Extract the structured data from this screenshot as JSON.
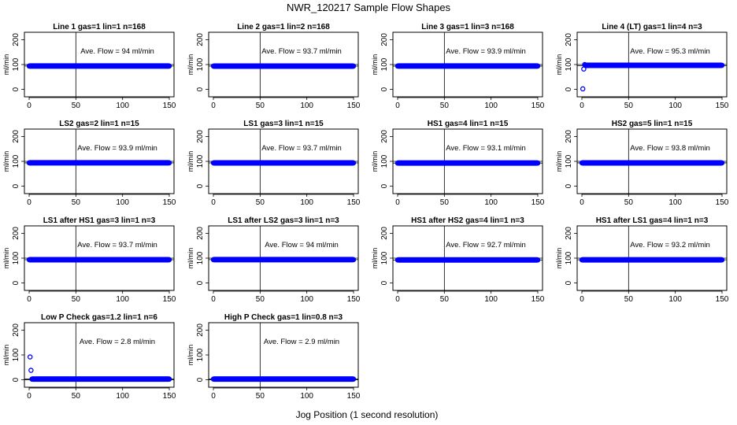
{
  "figure": {
    "title": "NWR_120217  Sample Flow Shapes",
    "xlabel": "Jog Position (1 second resolution)"
  },
  "chart_data": [
    {
      "type": "scatter",
      "title": "Line 1 gas=1 lin=1 n=168",
      "ylabel": "ml/min",
      "annotation": "Ave. Flow = 94  ml/min",
      "xlim": [
        0,
        150
      ],
      "ylim": [
        -30,
        230
      ],
      "xticks": [
        0,
        50,
        100,
        150
      ],
      "yticks": [
        0,
        100,
        200
      ],
      "x": [
        0,
        150
      ],
      "y": [
        94,
        94
      ],
      "refline_y": [
        100,
        94
      ],
      "vline_x": 50
    },
    {
      "type": "scatter",
      "title": "Line 2 gas=1 lin=2 n=168",
      "ylabel": "ml/min",
      "annotation": "Ave. Flow = 93.7  ml/min",
      "xlim": [
        0,
        150
      ],
      "ylim": [
        -30,
        230
      ],
      "xticks": [
        0,
        50,
        100,
        150
      ],
      "yticks": [
        0,
        100,
        200
      ],
      "x": [
        0,
        150
      ],
      "y": [
        93.7,
        93.7
      ],
      "refline_y": [
        100,
        93.7
      ],
      "vline_x": 50
    },
    {
      "type": "scatter",
      "title": "Line 3 gas=1 lin=3 n=168",
      "ylabel": "ml/min",
      "annotation": "Ave. Flow = 93.9  ml/min",
      "xlim": [
        0,
        150
      ],
      "ylim": [
        -30,
        230
      ],
      "xticks": [
        0,
        50,
        100,
        150
      ],
      "yticks": [
        0,
        100,
        200
      ],
      "x": [
        0,
        150
      ],
      "y": [
        93.9,
        93.9
      ],
      "refline_y": [
        100,
        93.9
      ],
      "vline_x": 50
    },
    {
      "type": "scatter",
      "title": "Line 4 (LT) gas=1 lin=4 n=3",
      "ylabel": "ml/min",
      "annotation": "Ave. Flow = 95.3  ml/min",
      "xlim": [
        0,
        150
      ],
      "ylim": [
        -30,
        230
      ],
      "xticks": [
        0,
        50,
        100,
        150
      ],
      "yticks": [
        0,
        100,
        200
      ],
      "x": [
        1,
        2,
        3,
        150
      ],
      "y": [
        2,
        82,
        100,
        97
      ],
      "refline_y": [
        100,
        95.3
      ],
      "vline_x": 50
    },
    {
      "type": "scatter",
      "title": "LS2 gas=2 lin=1 n=15",
      "ylabel": "ml/min",
      "annotation": "Ave. Flow = 93.9  ml/min",
      "xlim": [
        0,
        150
      ],
      "ylim": [
        -30,
        230
      ],
      "xticks": [
        0,
        50,
        100,
        150
      ],
      "yticks": [
        0,
        100,
        200
      ],
      "x": [
        0,
        150
      ],
      "y": [
        93.9,
        93.9
      ],
      "refline_y": [
        100,
        93.9
      ],
      "vline_x": 50
    },
    {
      "type": "scatter",
      "title": "LS1 gas=3 lin=1 n=15",
      "ylabel": "ml/min",
      "annotation": "Ave. Flow = 93.7  ml/min",
      "xlim": [
        0,
        150
      ],
      "ylim": [
        -30,
        230
      ],
      "xticks": [
        0,
        50,
        100,
        150
      ],
      "yticks": [
        0,
        100,
        200
      ],
      "x": [
        0,
        150
      ],
      "y": [
        93.7,
        93.7
      ],
      "refline_y": [
        100,
        93.7
      ],
      "vline_x": 50
    },
    {
      "type": "scatter",
      "title": "HS1 gas=4 lin=1 n=15",
      "ylabel": "ml/min",
      "annotation": "Ave. Flow = 93.1  ml/min",
      "xlim": [
        0,
        150
      ],
      "ylim": [
        -30,
        230
      ],
      "xticks": [
        0,
        50,
        100,
        150
      ],
      "yticks": [
        0,
        100,
        200
      ],
      "x": [
        0,
        150
      ],
      "y": [
        93.1,
        93.1
      ],
      "refline_y": [
        100,
        93.1
      ],
      "vline_x": 50
    },
    {
      "type": "scatter",
      "title": "HS2 gas=5 lin=1 n=15",
      "ylabel": "ml/min",
      "annotation": "Ave. Flow = 93.8  ml/min",
      "xlim": [
        0,
        150
      ],
      "ylim": [
        -30,
        230
      ],
      "xticks": [
        0,
        50,
        100,
        150
      ],
      "yticks": [
        0,
        100,
        200
      ],
      "x": [
        0,
        150
      ],
      "y": [
        93.8,
        93.8
      ],
      "refline_y": [
        100,
        93.8
      ],
      "vline_x": 50
    },
    {
      "type": "scatter",
      "title": "LS1 after HS1 gas=3 lin=1 n=3",
      "ylabel": "ml/min",
      "annotation": "Ave. Flow = 93.7  ml/min",
      "xlim": [
        0,
        150
      ],
      "ylim": [
        -30,
        230
      ],
      "xticks": [
        0,
        50,
        100,
        150
      ],
      "yticks": [
        0,
        100,
        200
      ],
      "x": [
        0,
        150
      ],
      "y": [
        93.7,
        93.7
      ],
      "refline_y": [
        100,
        93.7
      ],
      "vline_x": 50
    },
    {
      "type": "scatter",
      "title": "LS1 after LS2 gas=3 lin=1 n=3",
      "ylabel": "ml/min",
      "annotation": "Ave. Flow = 94  ml/min",
      "xlim": [
        0,
        150
      ],
      "ylim": [
        -30,
        230
      ],
      "xticks": [
        0,
        50,
        100,
        150
      ],
      "yticks": [
        0,
        100,
        200
      ],
      "x": [
        0,
        150
      ],
      "y": [
        94,
        94
      ],
      "refline_y": [
        100,
        94
      ],
      "vline_x": 50
    },
    {
      "type": "scatter",
      "title": "HS1 after HS2 gas=4 lin=1 n=3",
      "ylabel": "ml/min",
      "annotation": "Ave. Flow = 92.7  ml/min",
      "xlim": [
        0,
        150
      ],
      "ylim": [
        -30,
        230
      ],
      "xticks": [
        0,
        50,
        100,
        150
      ],
      "yticks": [
        0,
        100,
        200
      ],
      "x": [
        0,
        150
      ],
      "y": [
        92.7,
        92.7
      ],
      "refline_y": [
        100,
        92.7
      ],
      "vline_x": 50
    },
    {
      "type": "scatter",
      "title": "HS1 after LS1 gas=4 lin=1 n=3",
      "ylabel": "ml/min",
      "annotation": "Ave. Flow = 93.2  ml/min",
      "xlim": [
        0,
        150
      ],
      "ylim": [
        -30,
        230
      ],
      "xticks": [
        0,
        50,
        100,
        150
      ],
      "yticks": [
        0,
        100,
        200
      ],
      "x": [
        0,
        150
      ],
      "y": [
        93.2,
        93.2
      ],
      "refline_y": [
        100,
        93.2
      ],
      "vline_x": 50
    },
    {
      "type": "scatter",
      "title": "Low P Check gas=1.2 lin=1 n=6",
      "ylabel": "ml/min",
      "annotation": "Ave. Flow = 2.8  ml/min",
      "xlim": [
        0,
        150
      ],
      "ylim": [
        -30,
        230
      ],
      "xticks": [
        0,
        50,
        100,
        150
      ],
      "yticks": [
        0,
        100,
        200
      ],
      "x": [
        1,
        2,
        3,
        150
      ],
      "y": [
        92,
        38,
        2.8,
        2.8
      ],
      "refline_y": [
        0,
        2.8
      ],
      "vline_x": 50
    },
    {
      "type": "scatter",
      "title": "High P Check gas=1 lin=0.8 n=3",
      "ylabel": "ml/min",
      "annotation": "Ave. Flow = 2.9  ml/min",
      "xlim": [
        0,
        150
      ],
      "ylim": [
        -30,
        230
      ],
      "xticks": [
        0,
        50,
        100,
        150
      ],
      "yticks": [
        0,
        100,
        200
      ],
      "x": [
        0,
        150
      ],
      "y": [
        2.9,
        2.9
      ],
      "refline_y": [
        0,
        2.9
      ],
      "vline_x": 50
    }
  ],
  "colors": {
    "points": "#0000ff",
    "axes": "#000000"
  }
}
